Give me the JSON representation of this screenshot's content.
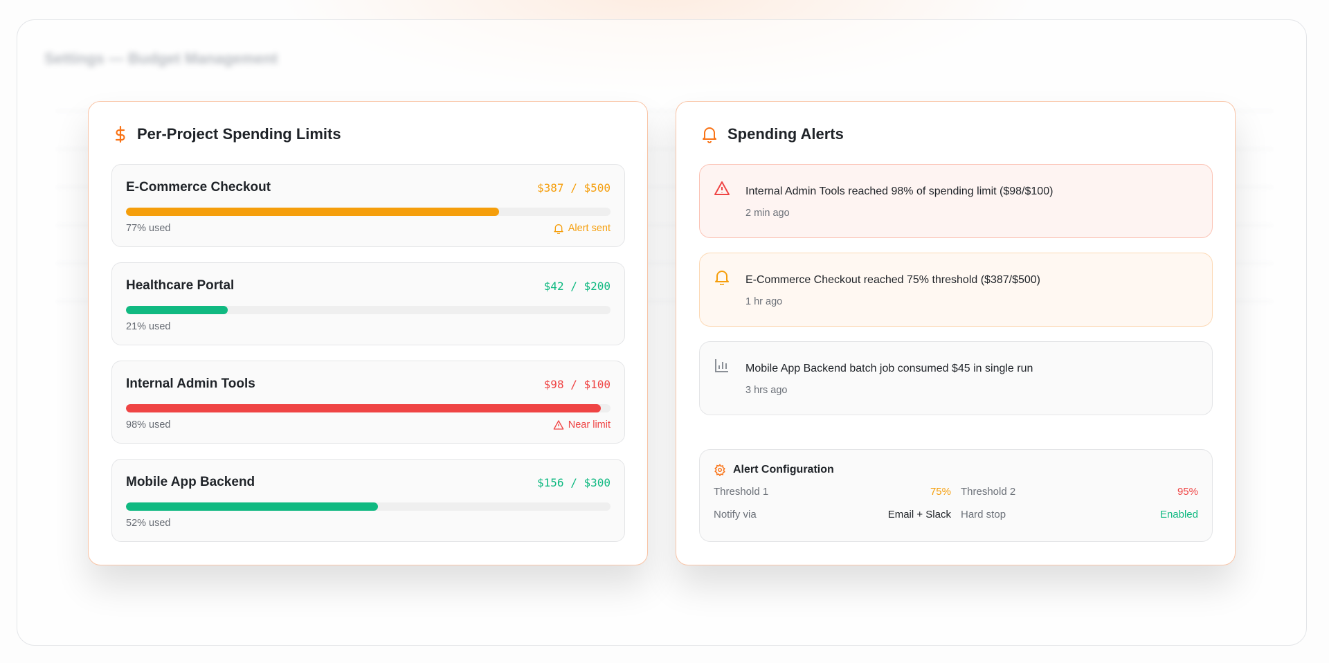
{
  "page": {
    "background_title": "Settings — Budget Management"
  },
  "colors": {
    "accent": "#f97316",
    "amber": "#f59e0b",
    "green": "#10b981",
    "red": "#ef4444"
  },
  "limits": {
    "title": "Per-Project Spending Limits",
    "icon": "dollar-icon",
    "projects": [
      {
        "name": "E-Commerce Checkout",
        "amount": "$387 / $500",
        "percent": 77,
        "used": "77% used",
        "color": "#f59e0b",
        "flag": "Alert sent",
        "flag_icon": "bell-icon"
      },
      {
        "name": "Healthcare Portal",
        "amount": "$42 / $200",
        "percent": 21,
        "used": "21% used",
        "color": "#10b981"
      },
      {
        "name": "Internal Admin Tools",
        "amount": "$98 / $100",
        "percent": 98,
        "used": "98% used",
        "color": "#ef4444",
        "flag": "Near limit",
        "flag_icon": "warning-icon"
      },
      {
        "name": "Mobile App Backend",
        "amount": "$156 / $300",
        "percent": 52,
        "used": "52% used",
        "color": "#10b981"
      }
    ]
  },
  "alerts": {
    "title": "Spending Alerts",
    "icon": "bell-icon",
    "items": [
      {
        "icon": "warning-icon",
        "message": "Internal Admin Tools reached 98% of spending limit ($98/$100)",
        "time": "2 min ago"
      },
      {
        "icon": "bell-icon",
        "message": "E-Commerce Checkout reached 75% threshold ($387/$500)",
        "time": "1 hr ago"
      },
      {
        "icon": "bar-chart-icon",
        "message": "Mobile App Backend batch job consumed $45 in single run",
        "time": "3 hrs ago"
      }
    ],
    "config": {
      "title": "Alert Configuration",
      "threshold1_label": "Threshold 1",
      "threshold1_value": "75%",
      "threshold2_label": "Threshold 2",
      "threshold2_value": "95%",
      "notify_label": "Notify via",
      "notify_value": "Email + Slack",
      "hardstop_label": "Hard stop",
      "hardstop_value": "Enabled"
    }
  }
}
